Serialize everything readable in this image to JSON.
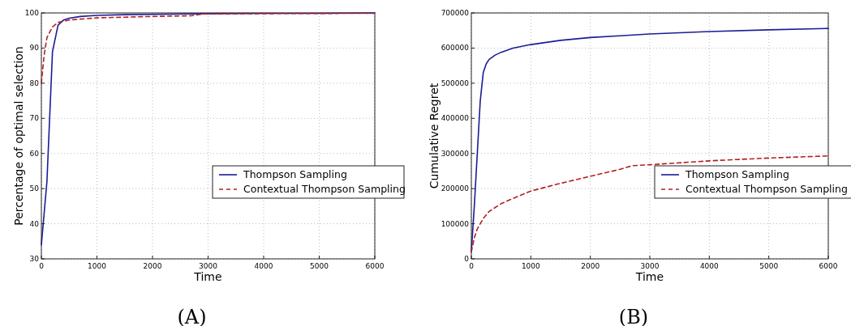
{
  "chart_data": [
    {
      "type": "line",
      "title": "(A)",
      "xlabel": "Time",
      "ylabel": "Percentage of optimal selection",
      "xlim": [
        0,
        6000
      ],
      "xticks": [
        0,
        1000,
        2000,
        3000,
        4000,
        5000,
        6000
      ],
      "ylim": [
        30,
        100
      ],
      "yticks": [
        30,
        40,
        50,
        60,
        70,
        80,
        90,
        100
      ],
      "grid": true,
      "legend": "right",
      "series": [
        {
          "name": "Thompson Sampling",
          "color": "#1c1c96",
          "line_style": "solid",
          "x": [
            0,
            100,
            200,
            300,
            400,
            500,
            700,
            1000,
            1500,
            2000,
            3000,
            4000,
            5000,
            6000
          ],
          "values": [
            34,
            52,
            89,
            96.5,
            98,
            98.5,
            99,
            99.3,
            99.5,
            99.6,
            99.8,
            99.9,
            99.9,
            100
          ]
        },
        {
          "name": "Contextual Thompson Sampling",
          "color": "#b22222",
          "line_style": "dashed",
          "x": [
            0,
            50,
            100,
            200,
            300,
            500,
            1000,
            1500,
            2000,
            2700,
            2900,
            4000,
            6000
          ],
          "values": [
            80,
            88,
            93,
            96,
            97.3,
            98,
            98.6,
            98.8,
            99,
            99.2,
            99.7,
            99.8,
            99.9
          ]
        }
      ]
    },
    {
      "type": "line",
      "title": "(B)",
      "xlabel": "Time",
      "ylabel": "Cumulative Regret",
      "xlim": [
        0,
        6000
      ],
      "xticks": [
        0,
        1000,
        2000,
        3000,
        4000,
        5000,
        6000
      ],
      "ylim": [
        0,
        700000
      ],
      "yticks": [
        0,
        100000,
        200000,
        300000,
        400000,
        500000,
        600000,
        700000
      ],
      "grid": true,
      "legend": "right",
      "series": [
        {
          "name": "Thompson Sampling",
          "color": "#1c1c96",
          "line_style": "solid",
          "x": [
            0,
            50,
            100,
            150,
            200,
            250,
            300,
            400,
            500,
            700,
            1000,
            1500,
            2000,
            2500,
            3000,
            4000,
            5000,
            6000
          ],
          "values": [
            20000,
            150000,
            300000,
            450000,
            530000,
            555000,
            568000,
            580000,
            588000,
            600000,
            610000,
            622000,
            630000,
            635000,
            640000,
            647000,
            652000,
            656000
          ]
        },
        {
          "name": "Contextual Thompson Sampling",
          "color": "#b22222",
          "line_style": "dashed",
          "x": [
            0,
            50,
            100,
            200,
            300,
            500,
            700,
            1000,
            1500,
            2000,
            2500,
            2700,
            3000,
            4000,
            5000,
            6000
          ],
          "values": [
            20000,
            60000,
            85000,
            115000,
            135000,
            157000,
            172000,
            193000,
            215000,
            235000,
            255000,
            265000,
            268000,
            279000,
            287000,
            293000
          ]
        }
      ]
    }
  ]
}
